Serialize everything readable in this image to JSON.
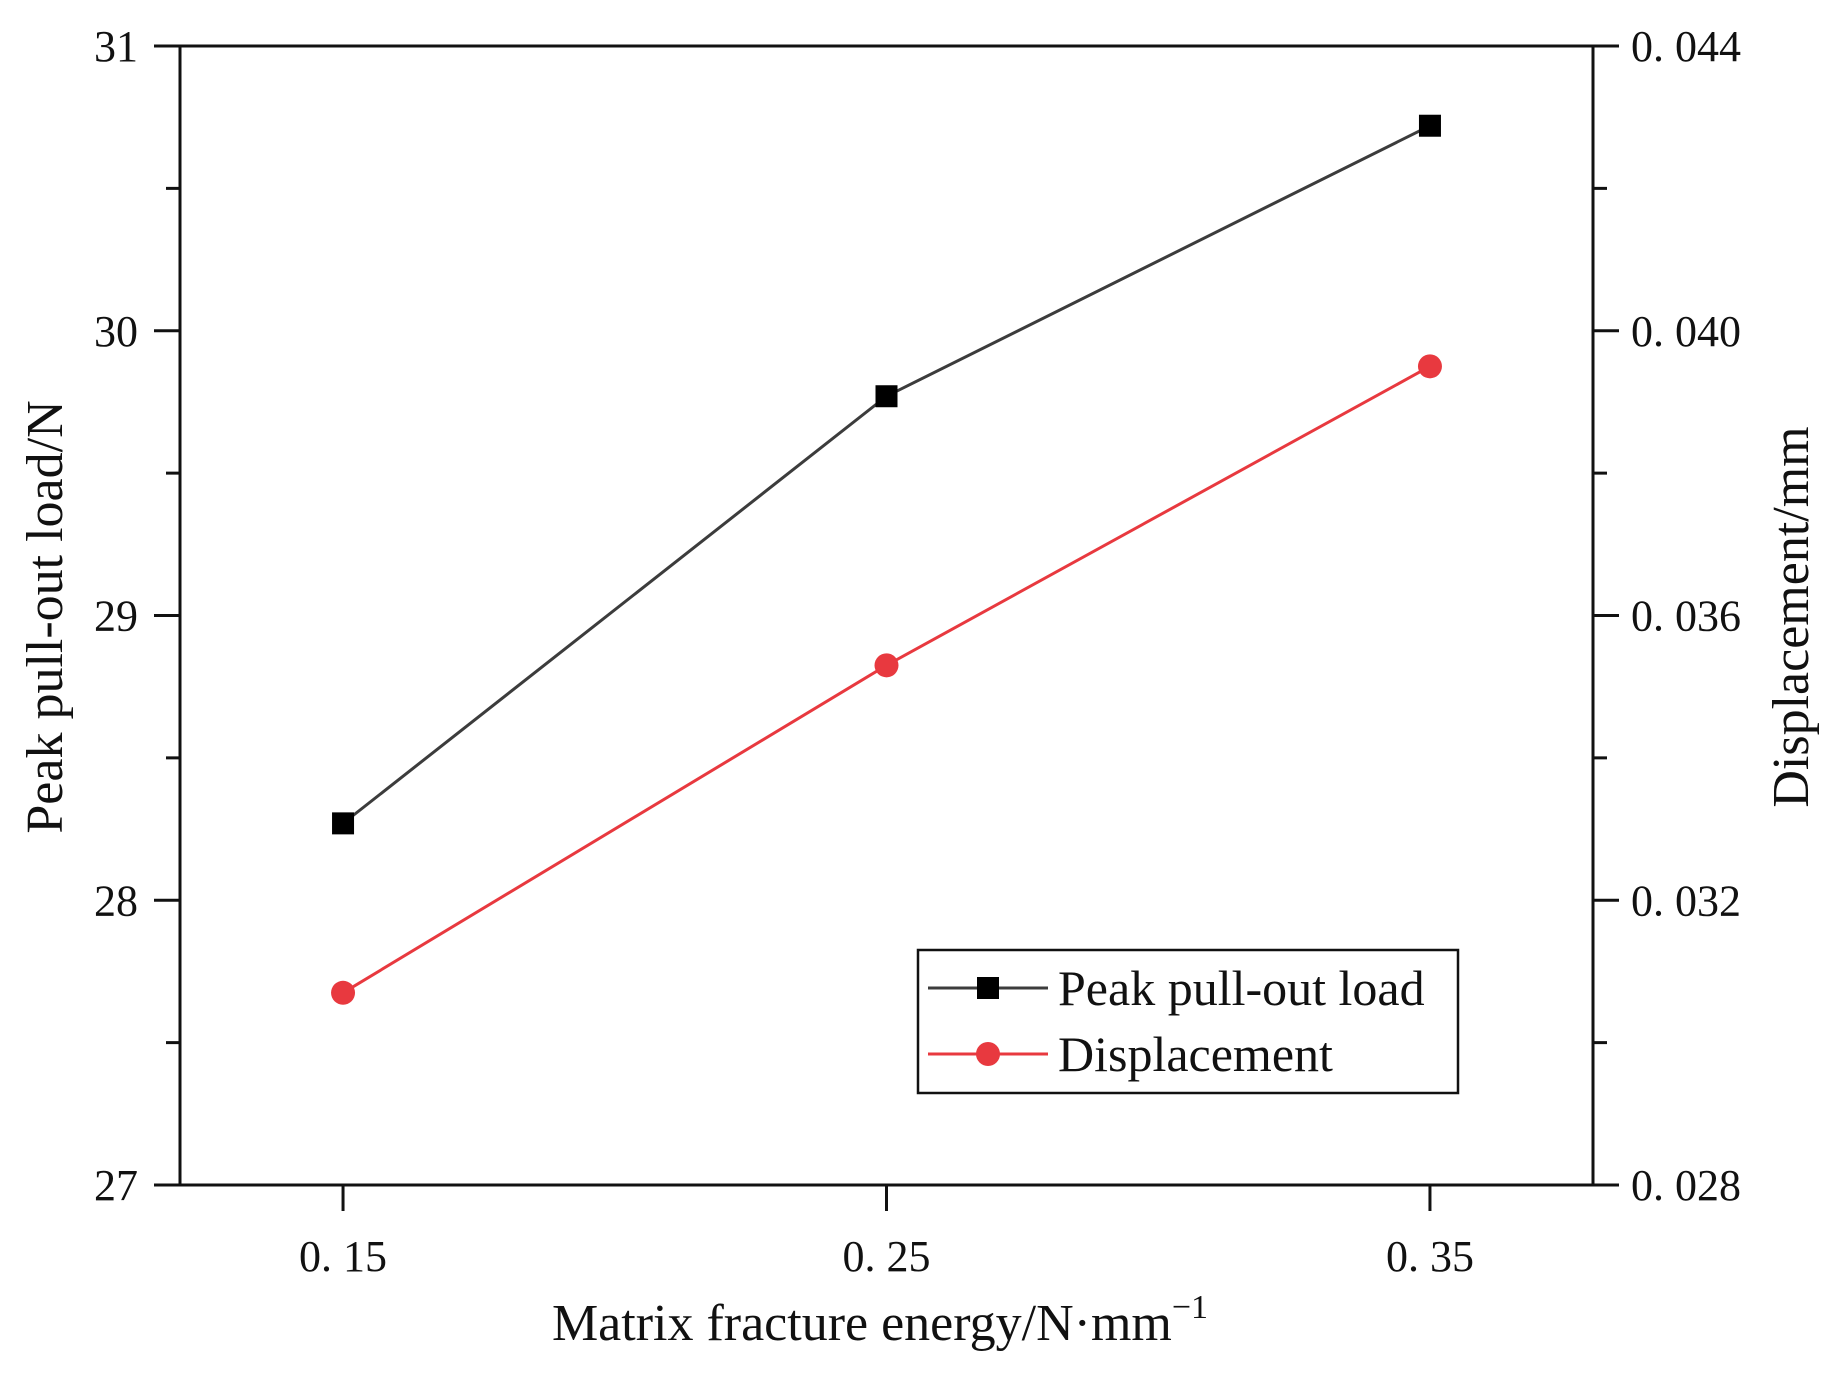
{
  "chart_data": {
    "type": "line",
    "title": "",
    "categories": [
      "0. 15",
      "0. 25",
      "0. 35"
    ],
    "x": [
      0.15,
      0.25,
      0.35
    ],
    "xlabel": "Matrix fracture energy/N·mm",
    "xlabel_superscript": "−1",
    "ylabel_left": "Peak pull-out load/N",
    "ylabel_right": "Displacement/mm",
    "left_axis": {
      "range": [
        27,
        31
      ],
      "ticks": [
        27,
        28,
        29,
        30,
        31
      ],
      "tick_labels": [
        "27",
        "28",
        "29",
        "30",
        "31"
      ]
    },
    "right_axis": {
      "range": [
        0.028,
        0.044
      ],
      "ticks": [
        0.028,
        0.032,
        0.036,
        0.04,
        0.044
      ],
      "tick_labels": [
        "0. 028",
        "0. 032",
        "0. 036",
        "0. 040",
        "0. 044"
      ]
    },
    "series": [
      {
        "name": "Peak pull-out load",
        "axis": "left",
        "marker": "square",
        "color": "#3c3c3c",
        "values": [
          28.27,
          29.77,
          30.72
        ]
      },
      {
        "name": "Displacement",
        "axis": "right",
        "marker": "circle",
        "color": "#e8393f",
        "values": [
          0.0307,
          0.0353,
          0.0395
        ]
      }
    ],
    "legend": "bottom-right",
    "grid": false
  }
}
